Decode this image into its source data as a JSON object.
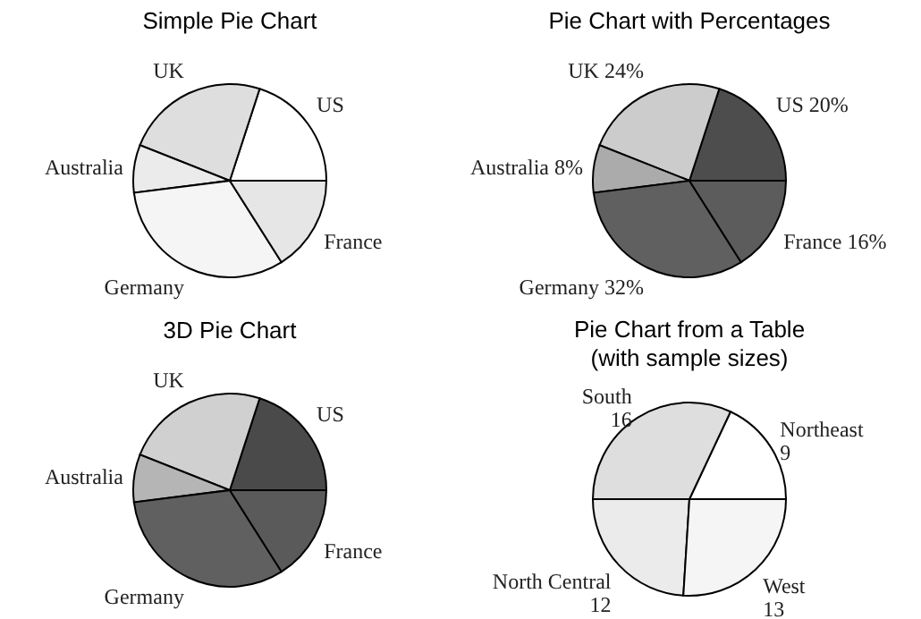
{
  "chart_data": [
    {
      "type": "pie",
      "title": "Simple Pie Chart",
      "categories": [
        "US",
        "UK",
        "Australia",
        "Germany",
        "France"
      ],
      "values": [
        20,
        24,
        8,
        32,
        16
      ],
      "colors": [
        "#ffffff",
        "#dedede",
        "#ebebeb",
        "#f5f5f5",
        "#e6e6e6"
      ]
    },
    {
      "type": "pie",
      "title": "Pie Chart with Percentages",
      "categories": [
        "US",
        "UK",
        "Australia",
        "Germany",
        "France"
      ],
      "values": [
        20,
        24,
        8,
        32,
        16
      ],
      "value_labels": [
        "20%",
        "24%",
        "8%",
        "32%",
        "16%"
      ],
      "colors": [
        "#4d4d4d",
        "#cccccc",
        "#ababab",
        "#606060",
        "#5c5c5c"
      ]
    },
    {
      "type": "pie",
      "title": "3D Pie Chart",
      "categories": [
        "US",
        "UK",
        "Australia",
        "Germany",
        "France"
      ],
      "values": [
        20,
        24,
        8,
        32,
        16
      ],
      "colors": [
        "#4a4a4a",
        "#d0d0d0",
        "#b5b5b5",
        "#606060",
        "#5a5a5a"
      ]
    },
    {
      "type": "pie",
      "title": "Pie Chart from a Table",
      "subtitle": "(with sample sizes)",
      "categories": [
        "Northeast",
        "South",
        "North Central",
        "West"
      ],
      "values": [
        9,
        16,
        12,
        13
      ],
      "data_labels": true,
      "colors": [
        "#ffffff",
        "#dedede",
        "#ebebeb",
        "#f5f5f5"
      ]
    }
  ]
}
